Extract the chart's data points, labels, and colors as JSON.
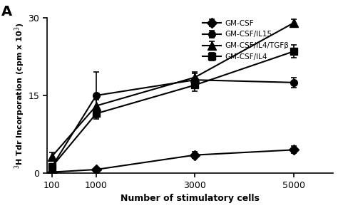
{
  "x": [
    100,
    1000,
    3000,
    5000
  ],
  "series_order": [
    "GM-CSF",
    "GM-CSF/IL15",
    "GM-CSF/IL4/TGFb",
    "GM-CSF/IL4"
  ],
  "series": {
    "GM-CSF": {
      "y": [
        0.2,
        0.7,
        3.5,
        4.5
      ],
      "yerr": [
        0.15,
        0.15,
        0.6,
        0.7
      ],
      "marker": "D",
      "markersize": 7,
      "label": "GM-CSF"
    },
    "GM-CSF/IL15": {
      "y": [
        1.2,
        15.0,
        18.0,
        17.5
      ],
      "yerr": [
        0.4,
        4.5,
        1.2,
        1.0
      ],
      "marker": "o",
      "markersize": 7,
      "label": "GM-CSF/IL15"
    },
    "GM-CSF/IL4/TGFb": {
      "y": [
        3.2,
        13.0,
        18.5,
        29.0
      ],
      "yerr": [
        0.8,
        1.2,
        1.0,
        0.7
      ],
      "marker": "^",
      "markersize": 8,
      "label": "GM-CSF/IL4/TGFβ"
    },
    "GM-CSF/IL4": {
      "y": [
        1.2,
        11.5,
        17.0,
        23.5
      ],
      "yerr": [
        0.3,
        0.8,
        1.2,
        1.2
      ],
      "marker": "s",
      "markersize": 7,
      "label": "GM-CSF/IL4"
    }
  },
  "xlabel": "Number of stimulatory cells",
  "ylabel": "$^{3}$H Tdr Incorporation (cpm x 10$^{3}$)",
  "ylim": [
    0,
    30
  ],
  "yticks": [
    0,
    15,
    30
  ],
  "xticks": [
    100,
    1000,
    3000,
    5000
  ],
  "xticklabels": [
    "100",
    "1000",
    "3000",
    "5000"
  ],
  "xlim": [
    0,
    5800
  ],
  "panel_label": "A",
  "background_color": "#ffffff",
  "line_color": "#000000"
}
